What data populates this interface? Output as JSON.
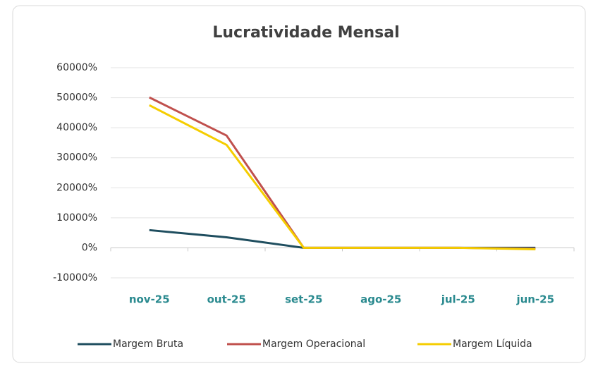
{
  "chart_data": {
    "type": "line",
    "title": "Lucratividade Mensal",
    "categories": [
      "nov-25",
      "out-25",
      "set-25",
      "ago-25",
      "jul-25",
      "jun-25"
    ],
    "series": [
      {
        "name": "Margem Bruta",
        "color": "#1f4e5f",
        "values": [
          5900,
          3500,
          0,
          0,
          0,
          0
        ]
      },
      {
        "name": "Margem Operacional",
        "color": "#c0504d",
        "values": [
          50100,
          37400,
          0,
          0,
          0,
          -300
        ]
      },
      {
        "name": "Margem Líquida",
        "color": "#f5cd00",
        "values": [
          47500,
          34300,
          0,
          0,
          0,
          -500
        ]
      }
    ],
    "ylim": [
      -10000,
      60000
    ],
    "yticks": [
      {
        "value": -10000,
        "label": "-10000%"
      },
      {
        "value": 0,
        "label": "0%"
      },
      {
        "value": 10000,
        "label": "10000%"
      },
      {
        "value": 20000,
        "label": "20000%"
      },
      {
        "value": 30000,
        "label": "30000%"
      },
      {
        "value": 40000,
        "label": "40000%"
      },
      {
        "value": 50000,
        "label": "50000%"
      },
      {
        "value": 60000,
        "label": "60000%"
      }
    ],
    "grid": true,
    "legend": "bottom"
  }
}
